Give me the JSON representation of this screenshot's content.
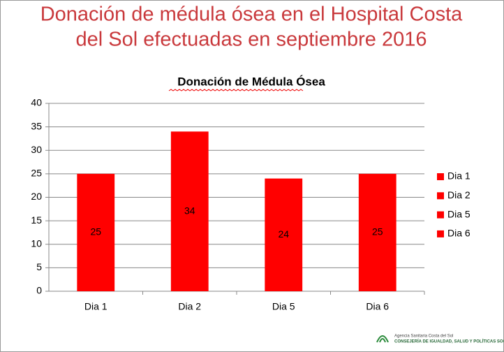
{
  "header": {
    "lines": [
      "Donación de médula ósea en el Hospital Costa",
      "del Sol efectuadas en septiembre 2016"
    ]
  },
  "chart_data": {
    "type": "bar",
    "title": "Donación de Médula Ósea",
    "categories": [
      "Dia 1",
      "Dia 2",
      "Dia 5",
      "Dia 6"
    ],
    "values": [
      25,
      34,
      24,
      25
    ],
    "color": "#ff0000",
    "ylim": [
      0,
      40
    ],
    "yticks": [
      0,
      5,
      10,
      15,
      20,
      25,
      30,
      35,
      40
    ],
    "grid": true,
    "legend": "right"
  },
  "logo": {
    "lines": [
      "Agencia Sanitaria Costa del Sol",
      "CONSEJERÍA DE IGUALDAD, SALUD Y POLÍTICAS SOCIALES"
    ]
  }
}
